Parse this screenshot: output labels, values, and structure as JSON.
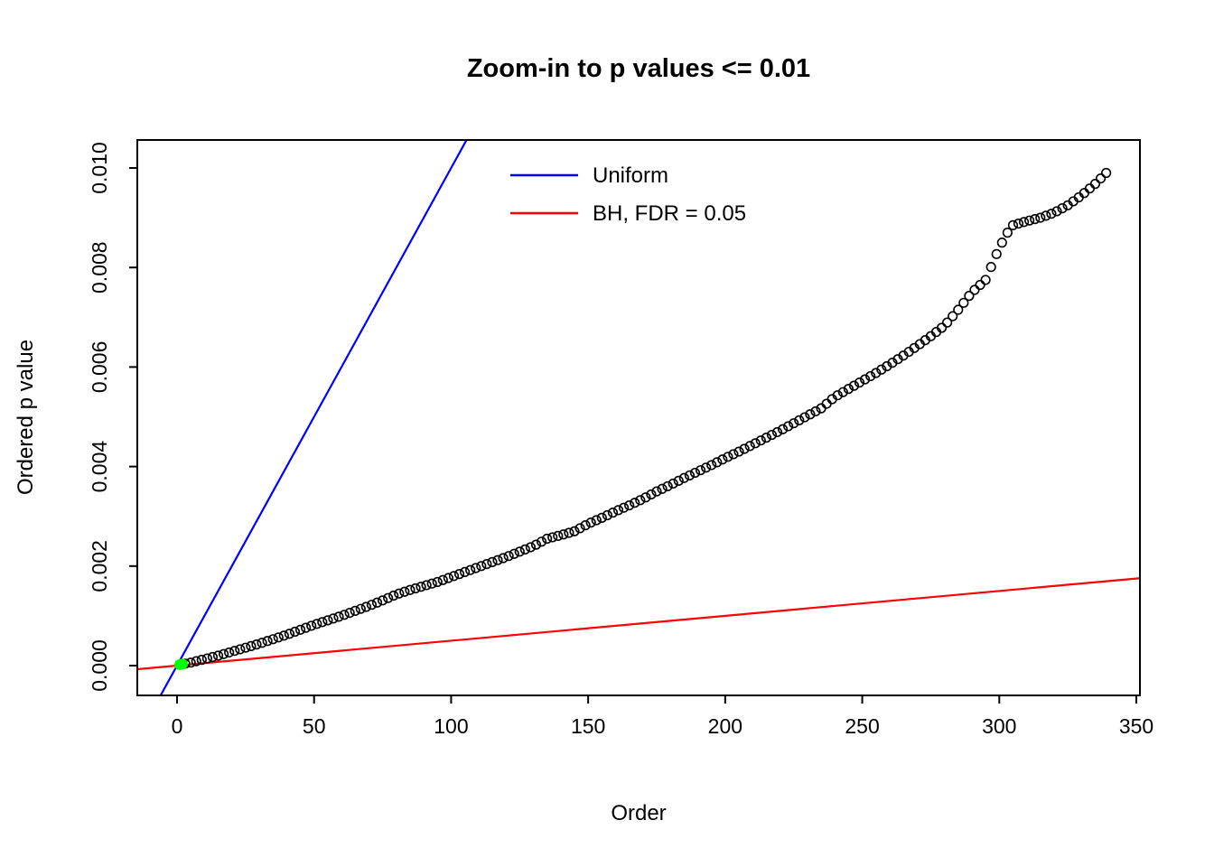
{
  "page": {
    "background": "#ffffff"
  },
  "chart_data": {
    "type": "scatter",
    "title": "Zoom-in to p values <= 0.01",
    "xlabel": "Order",
    "ylabel": "Ordered p value",
    "xlim": [
      -14.5,
      351.3
    ],
    "ylim": [
      -0.0006,
      0.01056
    ],
    "x_ticks": [
      0,
      50,
      100,
      150,
      200,
      250,
      300,
      350
    ],
    "x_tick_labels": [
      "0",
      "50",
      "100",
      "150",
      "200",
      "250",
      "300",
      "350"
    ],
    "y_ticks": [
      0.0,
      0.002,
      0.004,
      0.006,
      0.008,
      0.01
    ],
    "y_tick_labels": [
      "0.000",
      "0.002",
      "0.004",
      "0.006",
      "0.008",
      "0.010"
    ],
    "grid": false,
    "legend": {
      "position": "top-center-inside",
      "entries": [
        {
          "label": "Uniform",
          "color": "#0000FF"
        },
        {
          "label": "BH, FDR = 0.05",
          "color": "#FF0000"
        }
      ]
    },
    "lines": [
      {
        "name": "uniform",
        "label": "Uniform",
        "color": "#0000FF",
        "slope": 0.0001,
        "intercept": 0
      },
      {
        "name": "bh_fdr",
        "label": "BH, FDR = 0.05",
        "color": "#FF0000",
        "slope": 5e-06,
        "intercept": 0
      }
    ],
    "series": [
      {
        "name": "ordered_p_values",
        "marker": "open-circle",
        "color": "#000000",
        "n_points_depicted": 339,
        "points": [
          [
            1,
            2e-05
          ],
          [
            3,
            4e-05
          ],
          [
            5,
            6e-05
          ],
          [
            10,
            0.00013
          ],
          [
            15,
            0.0002
          ],
          [
            20,
            0.00028
          ],
          [
            25,
            0.00036
          ],
          [
            30,
            0.00044
          ],
          [
            35,
            0.00053
          ],
          [
            40,
            0.00062
          ],
          [
            45,
            0.00072
          ],
          [
            50,
            0.00082
          ],
          [
            55,
            0.00091
          ],
          [
            60,
            0.001
          ],
          [
            65,
            0.0011
          ],
          [
            70,
            0.0012
          ],
          [
            75,
            0.00131
          ],
          [
            80,
            0.00143
          ],
          [
            85,
            0.00152
          ],
          [
            90,
            0.0016
          ],
          [
            95,
            0.00168
          ],
          [
            100,
            0.00178
          ],
          [
            105,
            0.00188
          ],
          [
            110,
            0.00198
          ],
          [
            115,
            0.00208
          ],
          [
            120,
            0.00218
          ],
          [
            125,
            0.00229
          ],
          [
            130,
            0.0024
          ],
          [
            135,
            0.00255
          ],
          [
            140,
            0.00262
          ],
          [
            145,
            0.0027
          ],
          [
            150,
            0.00285
          ],
          [
            155,
            0.00297
          ],
          [
            160,
            0.0031
          ],
          [
            165,
            0.00322
          ],
          [
            170,
            0.00335
          ],
          [
            175,
            0.0035
          ],
          [
            180,
            0.00363
          ],
          [
            185,
            0.00377
          ],
          [
            190,
            0.0039
          ],
          [
            195,
            0.00403
          ],
          [
            200,
            0.00417
          ],
          [
            205,
            0.0043
          ],
          [
            210,
            0.00444
          ],
          [
            215,
            0.00458
          ],
          [
            220,
            0.00472
          ],
          [
            225,
            0.00487
          ],
          [
            230,
            0.00502
          ],
          [
            235,
            0.00517
          ],
          [
            240,
            0.0054
          ],
          [
            245,
            0.00556
          ],
          [
            250,
            0.00572
          ],
          [
            255,
            0.00588
          ],
          [
            260,
            0.00605
          ],
          [
            265,
            0.00623
          ],
          [
            270,
            0.00642
          ],
          [
            275,
            0.00662
          ],
          [
            280,
            0.00683
          ],
          [
            285,
            0.00715
          ],
          [
            290,
            0.0075
          ],
          [
            295,
            0.00775
          ],
          [
            300,
            0.0084
          ],
          [
            303,
            0.0087
          ],
          [
            305,
            0.00885
          ],
          [
            310,
            0.00893
          ],
          [
            315,
            0.009
          ],
          [
            320,
            0.0091
          ],
          [
            325,
            0.00925
          ],
          [
            330,
            0.00945
          ],
          [
            335,
            0.00968
          ],
          [
            339,
            0.0099
          ]
        ]
      }
    ],
    "significant_points": {
      "color": "#00FF00",
      "points": [
        [
          1,
          2e-05
        ],
        [
          2,
          3e-05
        ]
      ]
    },
    "render": {
      "scatter_step": 2,
      "min_order": 1,
      "max_order": 339
    }
  }
}
